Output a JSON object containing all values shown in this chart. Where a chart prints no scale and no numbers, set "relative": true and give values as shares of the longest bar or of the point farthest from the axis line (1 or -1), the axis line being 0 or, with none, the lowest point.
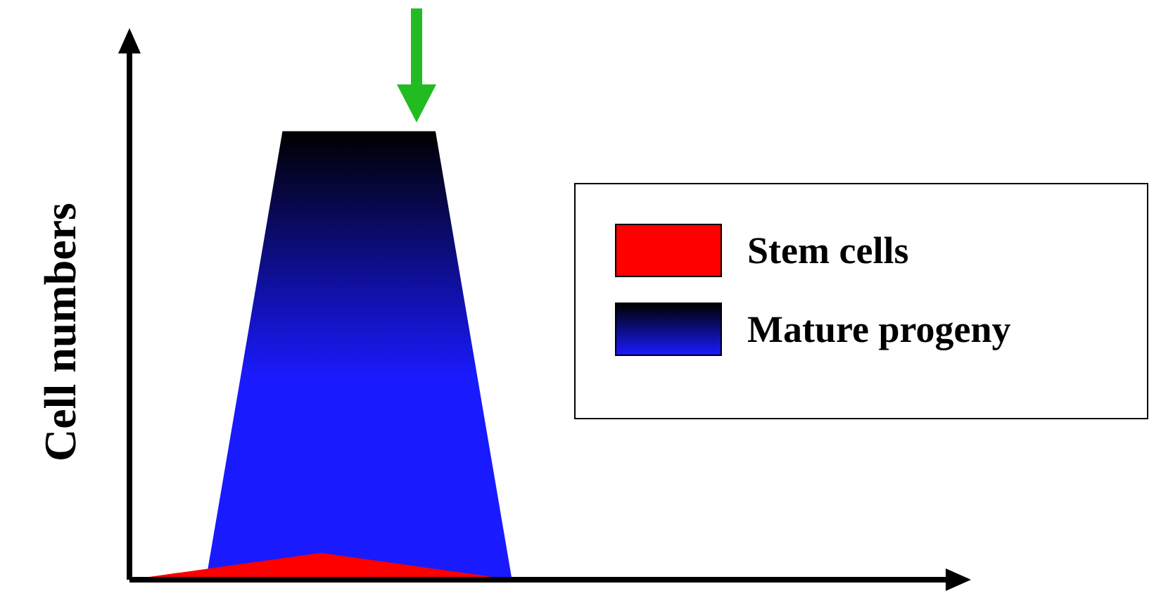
{
  "chart_data": {
    "type": "area",
    "relative": true,
    "ylabel": "Cell numbers",
    "legend": "right",
    "tick_labels": false,
    "categories": [
      null,
      null,
      null,
      null,
      null,
      null,
      null,
      null,
      null,
      null,
      null,
      null,
      null,
      null,
      null,
      null,
      null,
      null,
      null,
      null,
      null,
      null,
      null
    ],
    "series": [
      {
        "name": "Stem cells",
        "color": "#ff0000",
        "values": [
          0,
          0.012,
          0.024,
          0.036,
          0.048,
          0.06,
          0.048,
          0.036,
          0.024,
          0.012,
          0,
          null,
          null,
          null,
          null,
          null,
          null,
          null,
          null,
          null,
          null,
          null,
          null
        ]
      },
      {
        "name": "Mature progeny",
        "color": "#1a1aff",
        "values": [
          0,
          0,
          0,
          0.5,
          1,
          1,
          1,
          1,
          1,
          0.5,
          0,
          null,
          null,
          null,
          null,
          null,
          null,
          null,
          null,
          null,
          null,
          null,
          null
        ]
      }
    ]
  }
}
